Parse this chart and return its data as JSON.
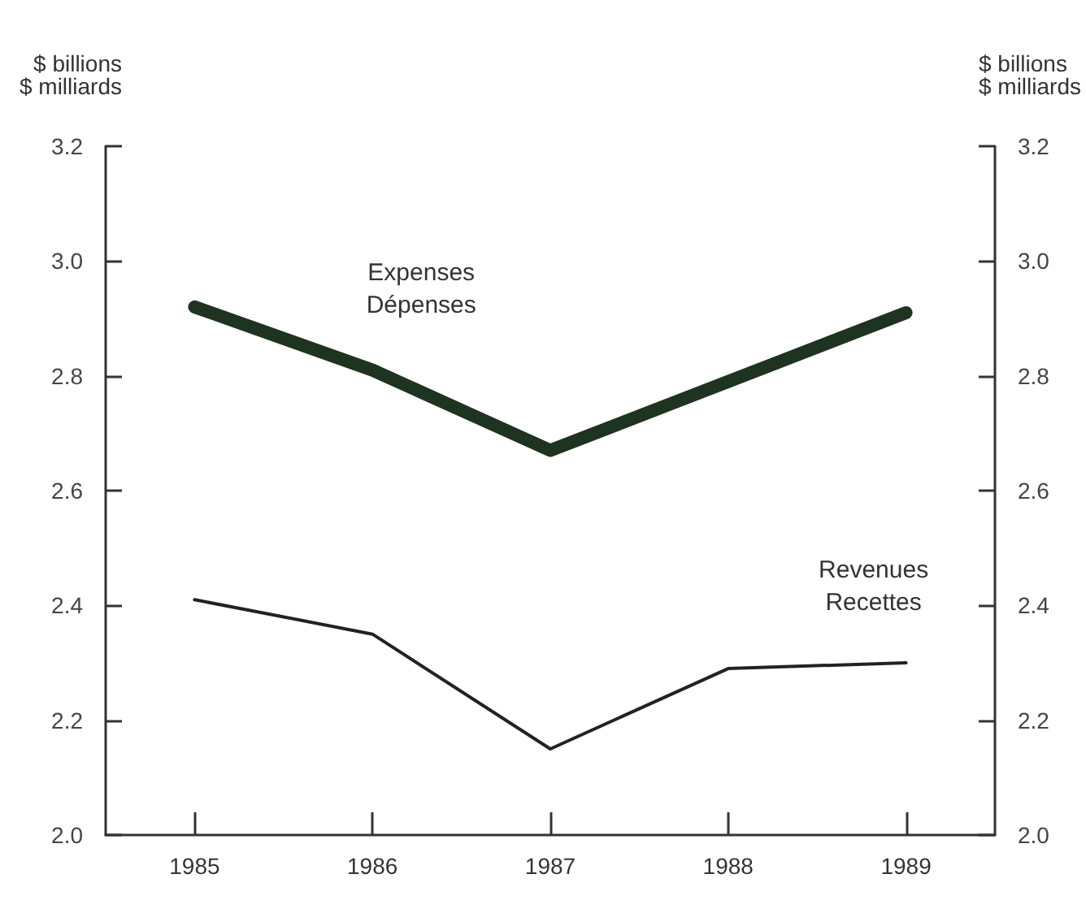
{
  "chart_data": {
    "type": "line",
    "ylabel": "$ billions\n$ milliards",
    "y2label": "$ billions\n$ milliards",
    "categories": [
      "1985",
      "1986",
      "1987",
      "1988",
      "1989"
    ],
    "series": [
      {
        "name": "Expenses\nDépenses",
        "color": "#1e3320",
        "values": [
          2.92,
          2.81,
          2.67,
          2.79,
          2.91
        ]
      },
      {
        "name": "Revenues\nRecettes",
        "color": "#222222",
        "values": [
          2.41,
          2.35,
          2.15,
          2.29,
          2.3
        ]
      }
    ],
    "ylim": [
      2.0,
      3.2
    ],
    "yticks": [
      {
        "value": 2.0,
        "label": "2.0"
      },
      {
        "value": 2.2,
        "label": "2.2"
      },
      {
        "value": 2.4,
        "label": "2.4"
      },
      {
        "value": 2.6,
        "label": "2.6"
      },
      {
        "value": 2.8,
        "label": "2.8"
      },
      {
        "value": 3.0,
        "label": "3.0"
      },
      {
        "value": 3.2,
        "label": "3.2"
      }
    ],
    "y2lim": [
      2.0,
      3.2
    ],
    "y2ticks": [
      {
        "value": 2.0,
        "label": "2.0"
      },
      {
        "value": 2.2,
        "label": "2.2"
      },
      {
        "value": 2.4,
        "label": "2.4"
      },
      {
        "value": 2.6,
        "label": "2.6"
      },
      {
        "value": 2.8,
        "label": "2.8"
      },
      {
        "value": 3.0,
        "label": "3.0"
      },
      {
        "value": 3.2,
        "label": "3.2"
      }
    ],
    "grid": false,
    "legend": false,
    "marker": "none",
    "line_style": "solid"
  }
}
